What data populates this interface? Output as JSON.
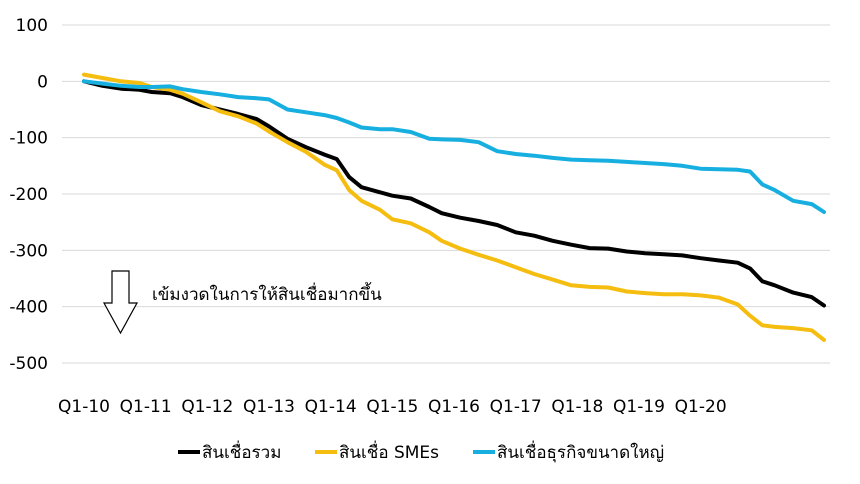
{
  "chart_data": {
    "type": "line",
    "title": "",
    "xlabel": "",
    "ylabel": "",
    "ylim": [
      -500,
      100
    ],
    "yticks": [
      100,
      0,
      -100,
      -200,
      -300,
      -400,
      -500
    ],
    "x_tick_labels": [
      "Q1-10",
      "Q1-11",
      "Q1-12",
      "Q1-13",
      "Q1-14",
      "Q1-15",
      "Q1-16",
      "Q1-17",
      "Q1-18",
      "Q1-19",
      "Q1-20"
    ],
    "grid": true,
    "legend_position": "bottom",
    "annotation": "เข้มงวดในการให้สินเชื่อมากขึ้น",
    "colors": {
      "black": "#000000",
      "yellow": "#f5bd0f",
      "blue": "#17aee0",
      "grid": "#d9d9d9"
    },
    "series": [
      {
        "name": "สินเชื่อรวม",
        "color": "#000000",
        "points": [
          [
            0,
            0
          ],
          [
            0.3,
            -8
          ],
          [
            0.6,
            -13
          ],
          [
            0.9,
            -15
          ],
          [
            1.1,
            -19
          ],
          [
            1.4,
            -21
          ],
          [
            1.6,
            -28
          ],
          [
            1.9,
            -42
          ],
          [
            2.2,
            -50
          ],
          [
            2.5,
            -58
          ],
          [
            2.8,
            -67
          ],
          [
            3.0,
            -80
          ],
          [
            3.3,
            -102
          ],
          [
            3.6,
            -117
          ],
          [
            3.9,
            -130
          ],
          [
            4.1,
            -138
          ],
          [
            4.3,
            -170
          ],
          [
            4.5,
            -188
          ],
          [
            4.8,
            -197
          ],
          [
            5.0,
            -203
          ],
          [
            5.3,
            -208
          ],
          [
            5.6,
            -223
          ],
          [
            5.8,
            -234
          ],
          [
            6.1,
            -242
          ],
          [
            6.4,
            -248
          ],
          [
            6.7,
            -255
          ],
          [
            7.0,
            -268
          ],
          [
            7.3,
            -274
          ],
          [
            7.6,
            -283
          ],
          [
            7.9,
            -290
          ],
          [
            8.2,
            -296
          ],
          [
            8.5,
            -297
          ],
          [
            8.8,
            -302
          ],
          [
            9.1,
            -305
          ],
          [
            9.4,
            -307
          ],
          [
            9.7,
            -309
          ],
          [
            10.0,
            -314
          ],
          [
            10.3,
            -318
          ],
          [
            10.6,
            -322
          ],
          [
            10.8,
            -332
          ],
          [
            11.0,
            -355
          ],
          [
            11.2,
            -362
          ],
          [
            11.5,
            -375
          ],
          [
            11.8,
            -383
          ],
          [
            12.0,
            -398
          ]
        ]
      },
      {
        "name": "สินเชื่อ SMEs",
        "color": "#f5bd0f",
        "points": [
          [
            0,
            12
          ],
          [
            0.3,
            6
          ],
          [
            0.6,
            0
          ],
          [
            0.9,
            -3
          ],
          [
            1.1,
            -10
          ],
          [
            1.4,
            -15
          ],
          [
            1.6,
            -22
          ],
          [
            1.9,
            -37
          ],
          [
            2.2,
            -53
          ],
          [
            2.5,
            -62
          ],
          [
            2.8,
            -75
          ],
          [
            3.0,
            -89
          ],
          [
            3.3,
            -108
          ],
          [
            3.6,
            -125
          ],
          [
            3.9,
            -148
          ],
          [
            4.1,
            -158
          ],
          [
            4.3,
            -193
          ],
          [
            4.5,
            -212
          ],
          [
            4.8,
            -228
          ],
          [
            5.0,
            -245
          ],
          [
            5.3,
            -252
          ],
          [
            5.6,
            -268
          ],
          [
            5.8,
            -283
          ],
          [
            6.1,
            -297
          ],
          [
            6.4,
            -308
          ],
          [
            6.7,
            -318
          ],
          [
            7.0,
            -330
          ],
          [
            7.3,
            -342
          ],
          [
            7.6,
            -352
          ],
          [
            7.9,
            -362
          ],
          [
            8.2,
            -365
          ],
          [
            8.5,
            -366
          ],
          [
            8.8,
            -373
          ],
          [
            9.1,
            -376
          ],
          [
            9.4,
            -378
          ],
          [
            9.7,
            -378
          ],
          [
            10.0,
            -380
          ],
          [
            10.3,
            -384
          ],
          [
            10.6,
            -396
          ],
          [
            10.8,
            -416
          ],
          [
            11.0,
            -433
          ],
          [
            11.2,
            -436
          ],
          [
            11.5,
            -438
          ],
          [
            11.8,
            -442
          ],
          [
            12.0,
            -459
          ]
        ]
      },
      {
        "name": "สินเชื่อธุรกิจขนาดใหญ่",
        "color": "#17aee0",
        "points": [
          [
            0,
            0
          ],
          [
            0.3,
            -4
          ],
          [
            0.6,
            -8
          ],
          [
            0.9,
            -10
          ],
          [
            1.1,
            -10
          ],
          [
            1.4,
            -9
          ],
          [
            1.6,
            -14
          ],
          [
            1.9,
            -19
          ],
          [
            2.2,
            -23
          ],
          [
            2.5,
            -28
          ],
          [
            2.8,
            -30
          ],
          [
            3.0,
            -32
          ],
          [
            3.3,
            -50
          ],
          [
            3.6,
            -55
          ],
          [
            3.9,
            -60
          ],
          [
            4.1,
            -65
          ],
          [
            4.3,
            -73
          ],
          [
            4.5,
            -82
          ],
          [
            4.8,
            -85
          ],
          [
            5.0,
            -85
          ],
          [
            5.3,
            -90
          ],
          [
            5.6,
            -102
          ],
          [
            5.8,
            -103
          ],
          [
            6.1,
            -104
          ],
          [
            6.4,
            -108
          ],
          [
            6.7,
            -124
          ],
          [
            7.0,
            -129
          ],
          [
            7.3,
            -132
          ],
          [
            7.6,
            -136
          ],
          [
            7.9,
            -139
          ],
          [
            8.2,
            -140
          ],
          [
            8.5,
            -141
          ],
          [
            8.8,
            -143
          ],
          [
            9.1,
            -145
          ],
          [
            9.4,
            -147
          ],
          [
            9.7,
            -150
          ],
          [
            10.0,
            -155
          ],
          [
            10.3,
            -156
          ],
          [
            10.6,
            -157
          ],
          [
            10.8,
            -160
          ],
          [
            11.0,
            -183
          ],
          [
            11.2,
            -193
          ],
          [
            11.5,
            -212
          ],
          [
            11.8,
            -218
          ],
          [
            12.0,
            -232
          ]
        ]
      }
    ]
  }
}
